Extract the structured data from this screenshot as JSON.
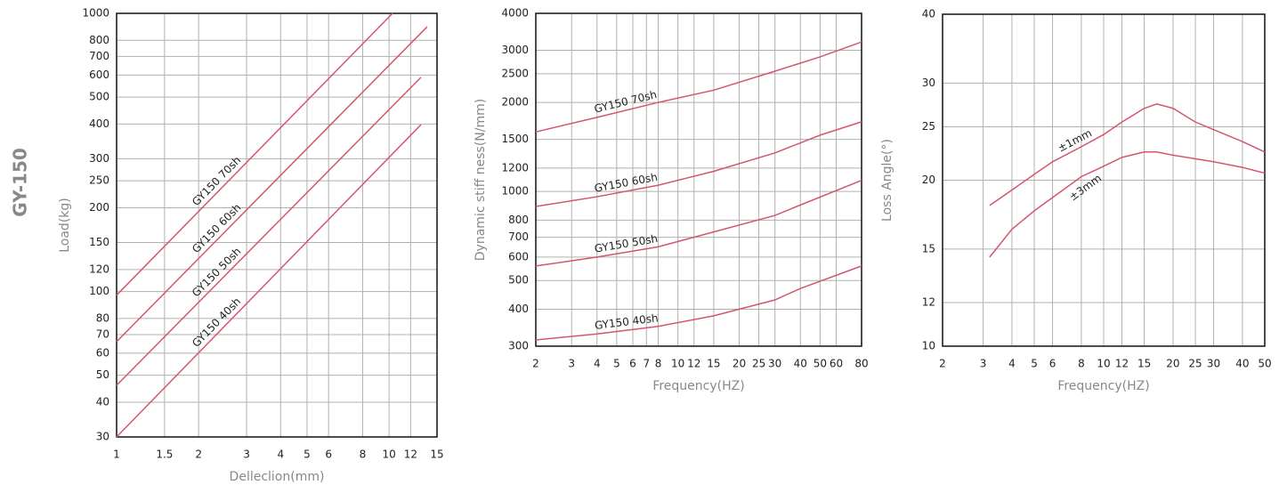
{
  "product": "GY-150",
  "chart_data": [
    {
      "type": "line",
      "x_label": "Delleclion(mm)",
      "y_label": "Load(kg)",
      "log_x": true,
      "log_y": true,
      "grid": true,
      "xlim": [
        1,
        15
      ],
      "xticks": [
        1,
        1.5,
        2,
        3,
        4,
        5,
        6,
        8,
        10,
        12,
        15
      ],
      "ylim": [
        30,
        1000
      ],
      "yticks": [
        30,
        40,
        50,
        60,
        70,
        80,
        100,
        120,
        150,
        200,
        250,
        300,
        400,
        500,
        600,
        700,
        800,
        1000
      ],
      "series": [
        {
          "name": "GY150 70sh",
          "color": "#d4566c",
          "x": [
            1,
            10.3
          ],
          "values": [
            97,
            1000
          ]
        },
        {
          "name": "GY150 60sh",
          "color": "#d4566c",
          "x": [
            1,
            13.8
          ],
          "values": [
            66,
            895
          ]
        },
        {
          "name": "GY150 50sh",
          "color": "#d4566c",
          "x": [
            1,
            13.1
          ],
          "values": [
            46,
            589
          ]
        },
        {
          "name": "GY150 40sh",
          "color": "#d4566c",
          "x": [
            1,
            13.1
          ],
          "values": [
            30,
            398
          ]
        }
      ]
    },
    {
      "type": "line",
      "x_label": "Frequency(HZ)",
      "y_label": "Dynamic stiff ness(N/mm)",
      "log_x": true,
      "log_y": true,
      "grid": true,
      "xlim": [
        2,
        80
      ],
      "xticks": [
        2,
        3,
        4,
        5,
        6,
        7,
        8,
        10,
        12,
        15,
        20,
        25,
        30,
        40,
        50,
        60,
        80
      ],
      "ylim": [
        300,
        4000
      ],
      "yticks": [
        300,
        400,
        500,
        600,
        700,
        800,
        1000,
        1200,
        1500,
        2000,
        2500,
        3000,
        4000
      ],
      "series": [
        {
          "name": "GY150 70sh",
          "color": "#d4566c",
          "x": [
            2,
            4,
            8,
            15,
            30,
            50,
            80
          ],
          "values": [
            1590,
            1780,
            2000,
            2200,
            2550,
            2850,
            3200
          ]
        },
        {
          "name": "GY150 60sh",
          "color": "#d4566c",
          "x": [
            2,
            4,
            8,
            15,
            30,
            50,
            80
          ],
          "values": [
            890,
            960,
            1050,
            1170,
            1350,
            1550,
            1720
          ]
        },
        {
          "name": "GY150 50sh",
          "color": "#d4566c",
          "x": [
            2,
            4,
            8,
            15,
            30,
            40,
            80
          ],
          "values": [
            560,
            600,
            650,
            730,
            830,
            900,
            1090
          ]
        },
        {
          "name": "GY150 40sh",
          "color": "#d4566c",
          "x": [
            2,
            4,
            8,
            15,
            30,
            40,
            80
          ],
          "values": [
            315,
            330,
            350,
            380,
            430,
            470,
            560
          ]
        }
      ]
    },
    {
      "type": "line",
      "x_label": "Frequency(HZ)",
      "y_label": "Loss Angle(°)",
      "log_x": true,
      "log_y": true,
      "grid": true,
      "xlim": [
        2,
        50
      ],
      "xticks": [
        2,
        3,
        4,
        5,
        6,
        8,
        10,
        12,
        15,
        20,
        25,
        30,
        40,
        50
      ],
      "ylim": [
        10,
        40
      ],
      "yticks": [
        10,
        12,
        15,
        20,
        25,
        30,
        40
      ],
      "series": [
        {
          "name": "±1mm",
          "color": "#d4566c",
          "x": [
            3.2,
            4,
            5,
            6,
            8,
            10,
            12,
            15,
            17,
            20,
            25,
            30,
            40,
            50
          ],
          "values": [
            18,
            19.2,
            20.5,
            21.6,
            23,
            24.2,
            25.5,
            27,
            27.5,
            27,
            25.5,
            24.7,
            23.5,
            22.5
          ]
        },
        {
          "name": "±3mm",
          "color": "#d4566c",
          "x": [
            3.2,
            4,
            5,
            6,
            8,
            10,
            12,
            15,
            17,
            20,
            30,
            40,
            50
          ],
          "values": [
            14.5,
            16.3,
            17.6,
            18.6,
            20.3,
            21.2,
            22,
            22.5,
            22.5,
            22.2,
            21.6,
            21.1,
            20.6
          ]
        }
      ]
    }
  ]
}
